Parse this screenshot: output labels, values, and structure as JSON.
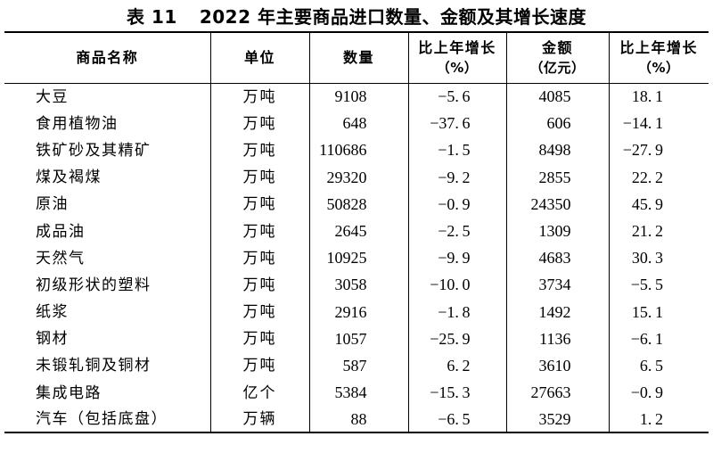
{
  "page": {
    "background_color": "#ffffff",
    "text_color": "#000000",
    "border_color": "#000000"
  },
  "title": {
    "prefix": "表 11",
    "text": "2022 年主要商品进口数量、金额及其增长速度"
  },
  "table": {
    "columns": [
      {
        "label": "商品名称"
      },
      {
        "label": "单位"
      },
      {
        "label": "数量"
      },
      {
        "label": "比上年增长",
        "sub": "（%）"
      },
      {
        "label": "金额",
        "sub": "（亿元）"
      },
      {
        "label": "比上年增长",
        "sub": "（%）"
      }
    ],
    "rows": [
      {
        "name": "大豆",
        "unit": "万吨",
        "quantity": "9108",
        "quantity_growth": "-5.6",
        "amount": "4085",
        "amount_growth": "18.1"
      },
      {
        "name": "食用植物油",
        "unit": "万吨",
        "quantity": "648",
        "quantity_growth": "-37.6",
        "amount": "606",
        "amount_growth": "-14.1"
      },
      {
        "name": "铁矿砂及其精矿",
        "unit": "万吨",
        "quantity": "110686",
        "quantity_growth": "-1.5",
        "amount": "8498",
        "amount_growth": "-27.9"
      },
      {
        "name": "煤及褐煤",
        "unit": "万吨",
        "quantity": "29320",
        "quantity_growth": "-9.2",
        "amount": "2855",
        "amount_growth": "22.2"
      },
      {
        "name": "原油",
        "unit": "万吨",
        "quantity": "50828",
        "quantity_growth": "-0.9",
        "amount": "24350",
        "amount_growth": "45.9"
      },
      {
        "name": "成品油",
        "unit": "万吨",
        "quantity": "2645",
        "quantity_growth": "-2.5",
        "amount": "1309",
        "amount_growth": "21.2"
      },
      {
        "name": "天然气",
        "unit": "万吨",
        "quantity": "10925",
        "quantity_growth": "-9.9",
        "amount": "4683",
        "amount_growth": "30.3"
      },
      {
        "name": "初级形状的塑料",
        "unit": "万吨",
        "quantity": "3058",
        "quantity_growth": "-10.0",
        "amount": "3734",
        "amount_growth": "-5.5"
      },
      {
        "name": "纸浆",
        "unit": "万吨",
        "quantity": "2916",
        "quantity_growth": "-1.8",
        "amount": "1492",
        "amount_growth": "15.1"
      },
      {
        "name": "钢材",
        "unit": "万吨",
        "quantity": "1057",
        "quantity_growth": "-25.9",
        "amount": "1136",
        "amount_growth": "-6.1"
      },
      {
        "name": "未锻轧铜及铜材",
        "unit": "万吨",
        "quantity": "587",
        "quantity_growth": "6.2",
        "amount": "3610",
        "amount_growth": "6.5"
      },
      {
        "name": "集成电路",
        "unit": "亿个",
        "quantity": "5384",
        "quantity_growth": "-15.3",
        "amount": "27663",
        "amount_growth": "-0.9"
      },
      {
        "name": "汽车（包括底盘）",
        "unit": "万辆",
        "quantity": "88",
        "quantity_growth": "-6.5",
        "amount": "3529",
        "amount_growth": "1.2"
      }
    ]
  }
}
